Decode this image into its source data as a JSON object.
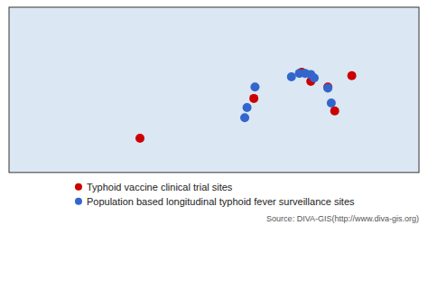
{
  "chart_data": {
    "type": "scatter",
    "series": [
      {
        "name": "Typhoid vaccine clinical trial sites",
        "color": "#CC0000",
        "marker": "circle",
        "x": [
          -65,
          35,
          77,
          85,
          100,
          106,
          121
        ],
        "values": [
          -30,
          5,
          28,
          20,
          15,
          -6,
          25
        ]
      },
      {
        "name": "Population based longitudinal typhoid fever surveillance sites",
        "color": "#3366CC",
        "marker": "circle",
        "x": [
          36,
          29,
          27,
          68,
          75,
          80,
          85,
          88,
          100,
          103
        ],
        "values": [
          15,
          -3,
          -12,
          24,
          27,
          27,
          26,
          23,
          14,
          1
        ]
      }
    ],
    "xlim": [
      -180,
      180
    ],
    "ylim": [
      -60,
      85
    ],
    "tick_labels": false,
    "grid": false,
    "legend": "bottom",
    "annotations": [
      "Source: DIVA-GIS(http://www.diva-gis.org)"
    ]
  }
}
